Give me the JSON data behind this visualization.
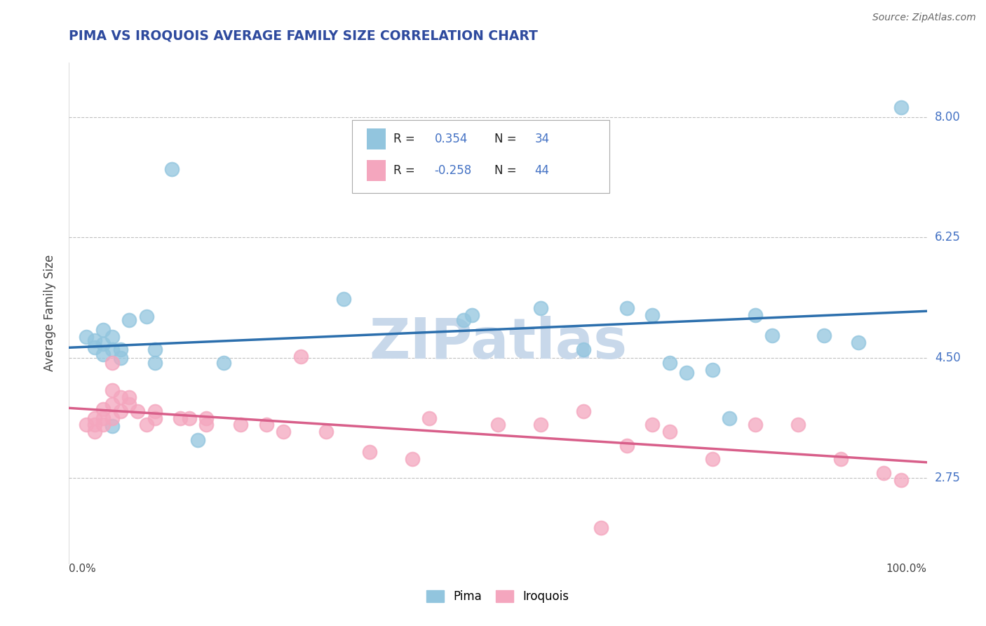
{
  "title": "PIMA VS IROQUOIS AVERAGE FAMILY SIZE CORRELATION CHART",
  "source_text": "Source: ZipAtlas.com",
  "ylabel": "Average Family Size",
  "legend_pima": "Pima",
  "legend_iroquois": "Iroquois",
  "pima_R": "0.354",
  "pima_N": "34",
  "iroquois_R": "-0.258",
  "iroquois_N": "44",
  "pima_color": "#92c5de",
  "iroquois_color": "#f4a6be",
  "pima_line_color": "#2c6fad",
  "iroquois_line_color": "#d85f8a",
  "watermark": "ZIPatlas",
  "watermark_color": "#c8d8ea",
  "yticks": [
    2.75,
    4.5,
    6.25,
    8.0
  ],
  "ytick_color": "#4472c4",
  "xmin": 0.0,
  "xmax": 1.0,
  "ymin": 1.5,
  "ymax": 8.8,
  "title_color": "#2e4a9e",
  "source_color": "#666666",
  "background_color": "#ffffff",
  "grid_color": "#c0c0c0",
  "pima_points": [
    [
      0.02,
      4.8
    ],
    [
      0.03,
      4.75
    ],
    [
      0.03,
      4.65
    ],
    [
      0.04,
      4.9
    ],
    [
      0.04,
      4.7
    ],
    [
      0.04,
      4.55
    ],
    [
      0.05,
      4.8
    ],
    [
      0.05,
      4.62
    ],
    [
      0.05,
      3.5
    ],
    [
      0.06,
      4.62
    ],
    [
      0.06,
      4.5
    ],
    [
      0.07,
      5.05
    ],
    [
      0.09,
      5.1
    ],
    [
      0.1,
      4.42
    ],
    [
      0.1,
      4.62
    ],
    [
      0.12,
      7.25
    ],
    [
      0.15,
      3.3
    ],
    [
      0.18,
      4.42
    ],
    [
      0.32,
      5.35
    ],
    [
      0.46,
      5.05
    ],
    [
      0.47,
      5.12
    ],
    [
      0.55,
      5.22
    ],
    [
      0.6,
      4.62
    ],
    [
      0.65,
      5.22
    ],
    [
      0.68,
      5.12
    ],
    [
      0.7,
      4.42
    ],
    [
      0.72,
      4.28
    ],
    [
      0.75,
      4.32
    ],
    [
      0.77,
      3.62
    ],
    [
      0.8,
      5.12
    ],
    [
      0.82,
      4.82
    ],
    [
      0.88,
      4.82
    ],
    [
      0.92,
      4.72
    ],
    [
      0.97,
      8.15
    ]
  ],
  "iroquois_points": [
    [
      0.02,
      3.52
    ],
    [
      0.03,
      3.62
    ],
    [
      0.03,
      3.52
    ],
    [
      0.03,
      3.42
    ],
    [
      0.04,
      3.75
    ],
    [
      0.04,
      3.62
    ],
    [
      0.04,
      3.52
    ],
    [
      0.05,
      4.42
    ],
    [
      0.05,
      4.02
    ],
    [
      0.05,
      3.82
    ],
    [
      0.05,
      3.62
    ],
    [
      0.06,
      3.92
    ],
    [
      0.06,
      3.72
    ],
    [
      0.07,
      3.92
    ],
    [
      0.07,
      3.82
    ],
    [
      0.08,
      3.72
    ],
    [
      0.09,
      3.52
    ],
    [
      0.1,
      3.62
    ],
    [
      0.1,
      3.72
    ],
    [
      0.13,
      3.62
    ],
    [
      0.14,
      3.62
    ],
    [
      0.16,
      3.52
    ],
    [
      0.16,
      3.62
    ],
    [
      0.2,
      3.52
    ],
    [
      0.23,
      3.52
    ],
    [
      0.25,
      3.42
    ],
    [
      0.27,
      4.52
    ],
    [
      0.3,
      3.42
    ],
    [
      0.35,
      3.12
    ],
    [
      0.4,
      3.02
    ],
    [
      0.42,
      3.62
    ],
    [
      0.5,
      3.52
    ],
    [
      0.55,
      3.52
    ],
    [
      0.6,
      3.72
    ],
    [
      0.62,
      2.02
    ],
    [
      0.65,
      3.22
    ],
    [
      0.68,
      3.52
    ],
    [
      0.7,
      3.42
    ],
    [
      0.75,
      3.02
    ],
    [
      0.8,
      3.52
    ],
    [
      0.85,
      3.52
    ],
    [
      0.9,
      3.02
    ],
    [
      0.95,
      2.82
    ],
    [
      0.97,
      2.72
    ]
  ]
}
